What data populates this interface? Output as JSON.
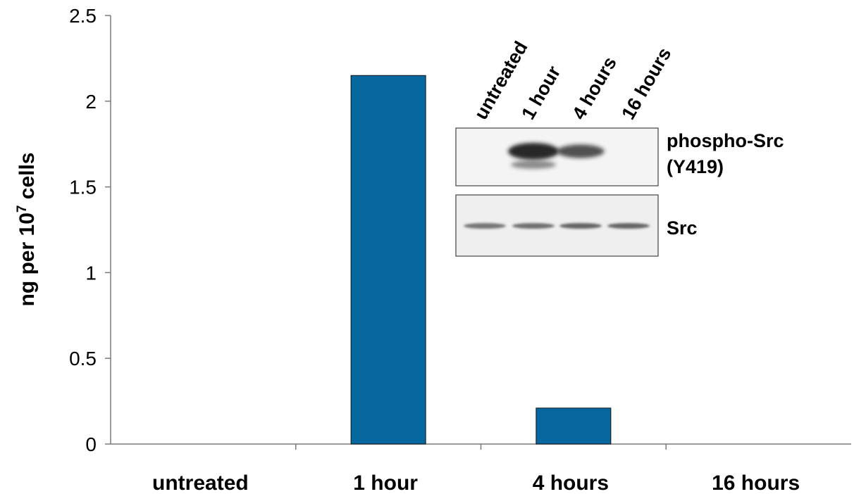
{
  "chart_data": {
    "type": "bar",
    "categories": [
      "untreated",
      "1 hour",
      "4 hours",
      "16 hours"
    ],
    "values": [
      0,
      2.15,
      0.21,
      0
    ],
    "title": "",
    "xlabel": "",
    "ylabel": {
      "prefix": "ng per 10",
      "superscript": "7",
      "suffix": " cells"
    },
    "ylim": [
      0,
      2.5
    ],
    "yticks": [
      "0",
      "0.5",
      "1",
      "1.5",
      "2",
      "2.5"
    ],
    "bar_color": "#06689f",
    "grid": false,
    "legend": "none"
  },
  "inset": {
    "type": "western-blot",
    "lanes": [
      "untreated",
      "1 hour",
      "4 hours",
      "16 hours"
    ],
    "panels": [
      {
        "label_lines": [
          "phospho-Src",
          "(Y419)"
        ],
        "band_intensity": [
          0,
          1.0,
          0.6,
          0
        ]
      },
      {
        "label_lines": [
          "Src"
        ],
        "band_intensity": [
          0.55,
          0.6,
          0.7,
          0.7
        ]
      }
    ]
  }
}
